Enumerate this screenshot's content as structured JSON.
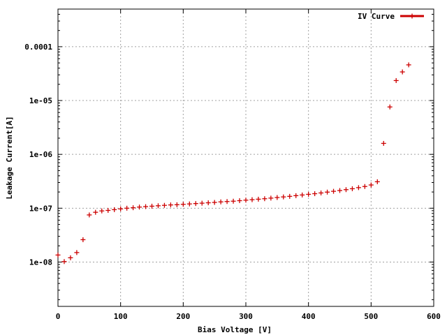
{
  "chart_data": {
    "type": "scatter",
    "title": "",
    "xlabel": "Bias Voltage [V]",
    "ylabel": "Leakage Current[A]",
    "xlim": [
      0,
      600
    ],
    "ylim": [
      1.5e-09,
      0.0005
    ],
    "yscale": "log",
    "grid": true,
    "legend_position": "top-right",
    "x_ticks": [
      {
        "value": 0,
        "label": "0"
      },
      {
        "value": 100,
        "label": "100"
      },
      {
        "value": 200,
        "label": "200"
      },
      {
        "value": 300,
        "label": "300"
      },
      {
        "value": 400,
        "label": "400"
      },
      {
        "value": 500,
        "label": "500"
      },
      {
        "value": 600,
        "label": "600"
      }
    ],
    "y_ticks": [
      {
        "value": 1e-08,
        "label": "1e-08"
      },
      {
        "value": 1e-07,
        "label": "1e-07"
      },
      {
        "value": 1e-06,
        "label": "1e-06"
      },
      {
        "value": 1e-05,
        "label": "1e-05"
      },
      {
        "value": 0.0001,
        "label": "0.0001"
      }
    ],
    "series": [
      {
        "name": "IV Curve",
        "color": "#cc0000",
        "marker": "plus",
        "x": [
          0,
          10,
          20,
          30,
          40,
          50,
          60,
          70,
          80,
          90,
          100,
          110,
          120,
          130,
          140,
          150,
          160,
          170,
          180,
          190,
          200,
          210,
          220,
          230,
          240,
          250,
          260,
          270,
          280,
          290,
          300,
          310,
          320,
          330,
          340,
          350,
          360,
          370,
          380,
          390,
          400,
          410,
          420,
          430,
          440,
          450,
          460,
          470,
          480,
          490,
          500,
          510,
          520,
          530,
          540,
          550,
          560
        ],
        "y": [
          1.35e-08,
          1.02e-08,
          1.2e-08,
          1.5e-08,
          2.6e-08,
          7.5e-08,
          8.4e-08,
          8.9e-08,
          9.1e-08,
          9.4e-08,
          9.7e-08,
          1e-07,
          1.02e-07,
          1.05e-07,
          1.07e-07,
          1.09e-07,
          1.11e-07,
          1.13e-07,
          1.15e-07,
          1.16e-07,
          1.18e-07,
          1.2e-07,
          1.22e-07,
          1.24e-07,
          1.26e-07,
          1.28e-07,
          1.31e-07,
          1.33e-07,
          1.35e-07,
          1.38e-07,
          1.41e-07,
          1.44e-07,
          1.47e-07,
          1.5e-07,
          1.54e-07,
          1.58e-07,
          1.62e-07,
          1.66e-07,
          1.71e-07,
          1.76e-07,
          1.81e-07,
          1.86e-07,
          1.92e-07,
          1.99e-07,
          2.06e-07,
          2.13e-07,
          2.21e-07,
          2.3e-07,
          2.41e-07,
          2.53e-07,
          2.7e-07,
          3.1e-07,
          1.6e-06,
          7.6e-06,
          2.35e-05,
          3.4e-05,
          4.6e-05
        ]
      }
    ]
  }
}
